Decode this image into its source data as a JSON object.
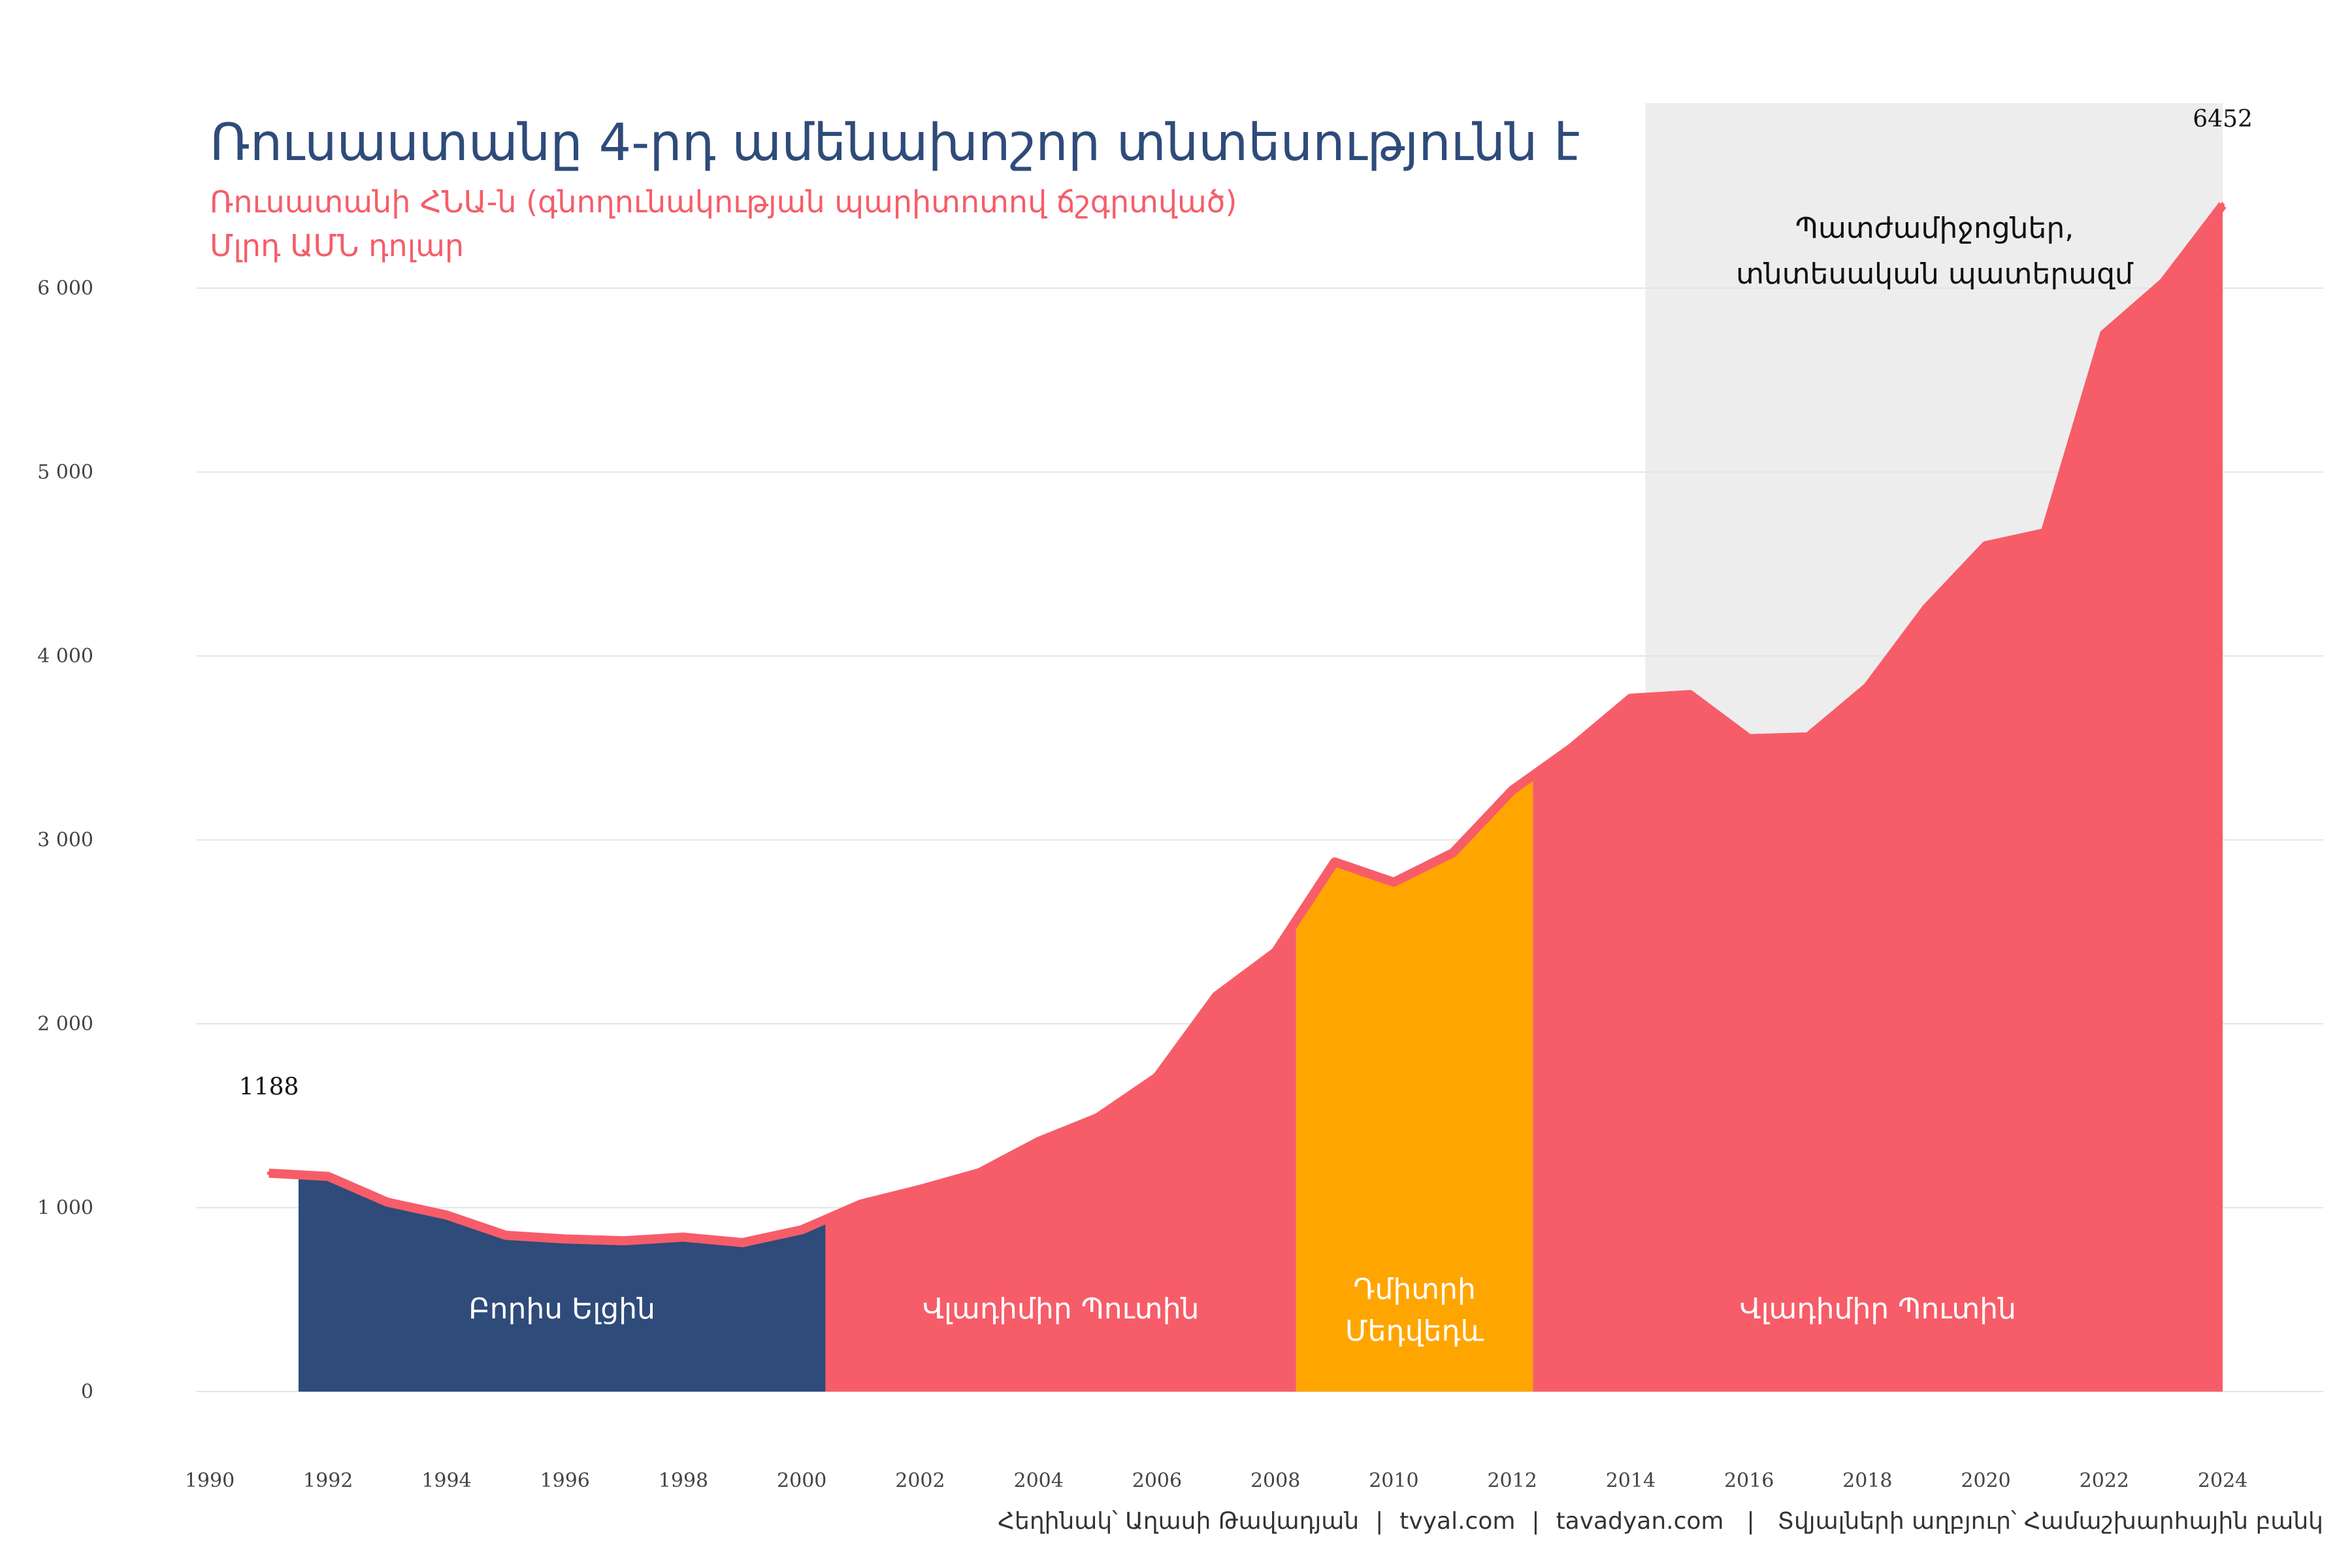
{
  "chart_data": {
    "type": "area",
    "title": "Ռուսաստանը 4-րդ ամենախոշոր տնտեսությունն է",
    "subtitle": "Ռուսատանի ՀՆԱ-ն (գնողունակության պարիտոտով ճշգրտված)",
    "ylabel": "Մլրդ ԱՄՆ դոլար",
    "ylim": [
      0,
      6600
    ],
    "xlim": [
      1990,
      2025
    ],
    "grid": true,
    "x": [
      1991,
      1992,
      1993,
      1994,
      1995,
      1996,
      1997,
      1998,
      1999,
      2000,
      2001,
      2002,
      2003,
      2004,
      2005,
      2006,
      2007,
      2008,
      2009,
      2010,
      2011,
      2012,
      2013,
      2014,
      2015,
      2016,
      2017,
      2018,
      2019,
      2020,
      2021,
      2022,
      2023,
      2024
    ],
    "values": [
      1188,
      1170,
      1030,
      960,
      850,
      830,
      820,
      840,
      810,
      880,
      1020,
      1100,
      1190,
      1360,
      1490,
      1710,
      2150,
      2390,
      2880,
      2770,
      2930,
      3270,
      3500,
      3770,
      3790,
      3550,
      3560,
      3830,
      4260,
      4600,
      4670,
      5750,
      6030,
      6452
    ],
    "periods": [
      {
        "label": "Բորիս Ելցին",
        "start": 1991.5,
        "end": 2000.4,
        "color": "#2e4b7a"
      },
      {
        "label": "Վլադիմիր Պուտին",
        "start": 2000.4,
        "end": 2008.35,
        "color": "#f65d69"
      },
      {
        "label": "Դմիտրի Մեդվեդև",
        "label_lines": [
          "Դմիտրի",
          "Մեդվեդև"
        ],
        "start": 2008.35,
        "end": 2012.35,
        "color": "#ffa500"
      },
      {
        "label": "Վլադիմիր Պուտին",
        "start": 2012.35,
        "end": 2024,
        "color": "#f65d69"
      }
    ],
    "shaded_region": {
      "start": 2014.25,
      "end": 2024,
      "label_lines": [
        "Պատժամիջոցներ,",
        "տնտեսական պատերազմ"
      ],
      "color": "#ededed"
    },
    "annotations": [
      {
        "x": 1991,
        "text": "1188"
      },
      {
        "x": 2024,
        "text": "6452"
      }
    ],
    "line_color": "#f65d69",
    "yticks": [
      0,
      1000,
      2000,
      3000,
      4000,
      5000,
      6000
    ],
    "ytick_labels": [
      "0",
      "1 000",
      "2 000",
      "3 000",
      "4 000",
      "5 000",
      "6 000"
    ],
    "xticks": [
      1990,
      1992,
      1994,
      1996,
      1998,
      2000,
      2002,
      2004,
      2006,
      2008,
      2010,
      2012,
      2014,
      2016,
      2018,
      2020,
      2022,
      2024
    ]
  },
  "footer": {
    "author": "Հեղինակ՝ Աղասի Թավադյան",
    "sep": "|",
    "site1": "tvyal.com",
    "site2": "tavadyan.com",
    "source": "Տվյալների աղբյուր՝ Համաշխարհային բանկ"
  }
}
